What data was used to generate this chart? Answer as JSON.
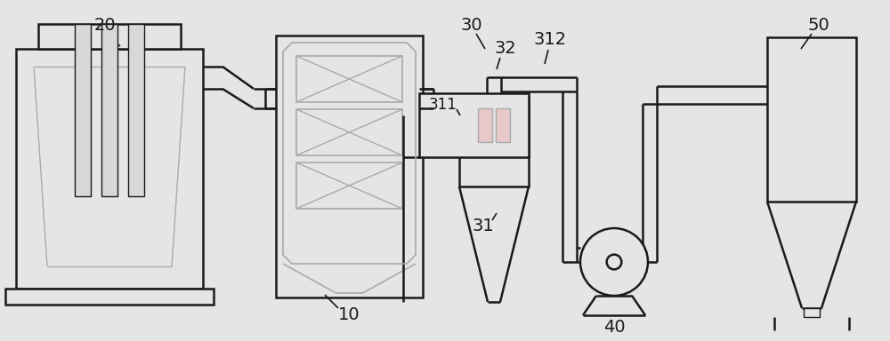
{
  "bg_color": "#e5e5e5",
  "line_color": "#1a1a1a",
  "gray1": "#aaaaaa",
  "pink": "#e8c8c8",
  "label_fontsize": 14
}
